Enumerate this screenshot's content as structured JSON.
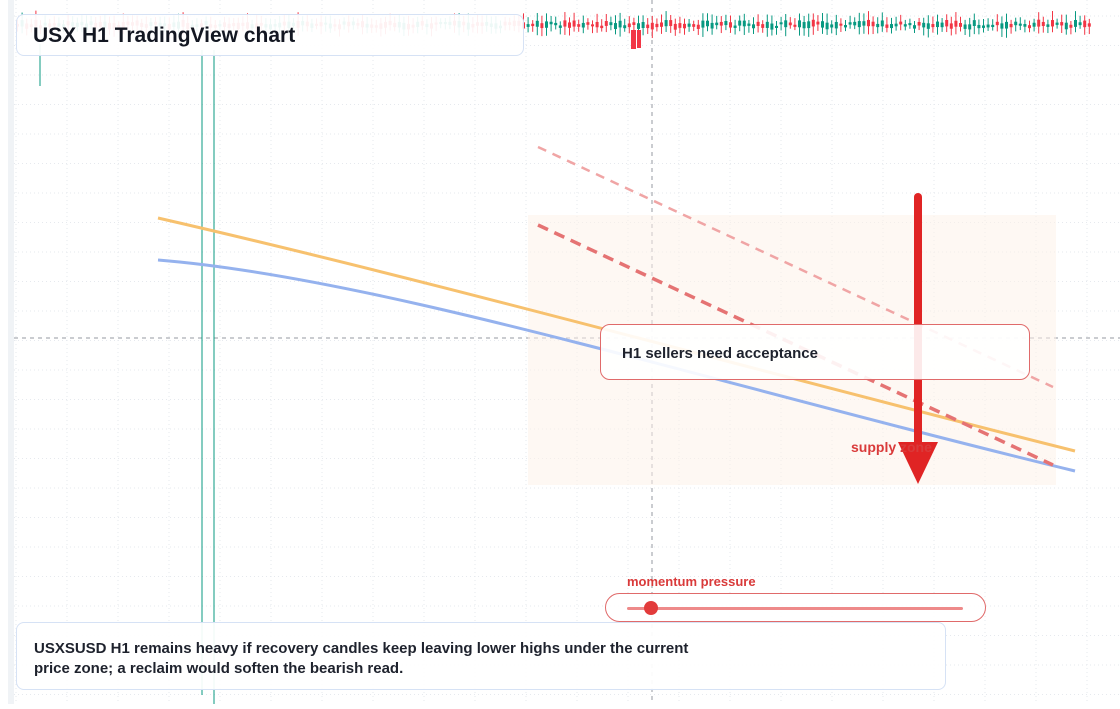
{
  "title": "USX H1 TradingView chart",
  "callout": {
    "text": "H1 sellers need acceptance"
  },
  "zone": {
    "label": "supply zone"
  },
  "momentum": {
    "label": "momentum pressure",
    "level": 0.07
  },
  "note": {
    "text": "USXSUSD H1 remains heavy if recovery candles keep leaving lower highs under the current price zone; a reclaim would soften the bearish read."
  },
  "colors": {
    "bullish": "#089981",
    "bearish": "#f23645",
    "moving_average_fast": "#f7c16e",
    "moving_average_slow": "#95b2ee",
    "arrow": "#e02424",
    "trendline": "#e57373"
  },
  "icons": {
    "direction": "down-arrow-icon"
  }
}
